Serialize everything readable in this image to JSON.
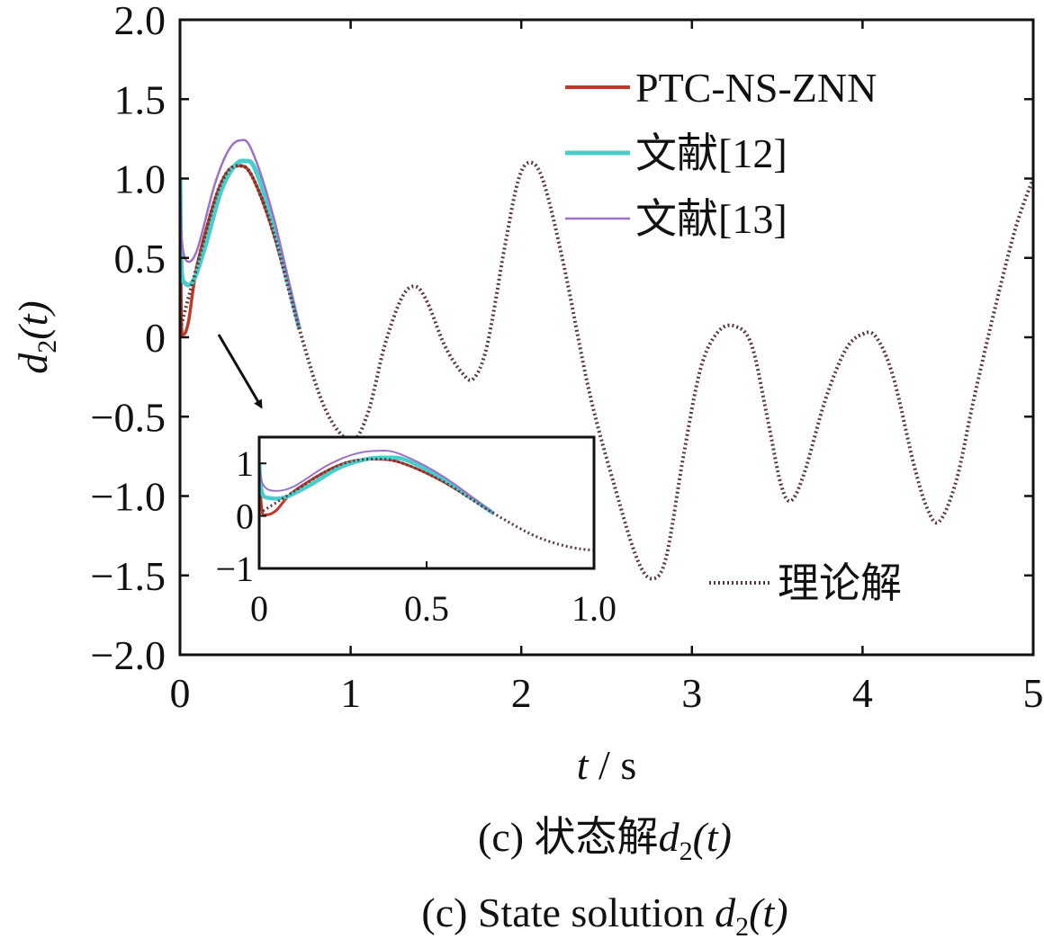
{
  "chart_data": {
    "type": "line",
    "ylabel": "d2(t)",
    "ylabel_main": "d",
    "ylabel_sub": "2",
    "ylabel_paren": "(t)",
    "xlabel": "t / s",
    "xlabel_var": "t",
    "xlabel_unit": " / s",
    "xlim": [
      0,
      5
    ],
    "ylim": [
      -2.0,
      2.0
    ],
    "xticks": [
      0,
      1,
      2,
      3,
      4,
      5
    ],
    "xtick_labels": [
      "0",
      "1",
      "2",
      "3",
      "4",
      "5"
    ],
    "yticks": [
      2.0,
      1.5,
      1.0,
      0.5,
      0,
      -0.5,
      -1.0,
      -1.5,
      -2.0
    ],
    "ytick_labels": [
      "2.0",
      "1.5",
      "1.0",
      "0.5",
      "0",
      "−0.5",
      "−1.0",
      "−1.5",
      "−2.0"
    ],
    "theory_points": [
      [
        0.0,
        0.05
      ],
      [
        0.1,
        0.45
      ],
      [
        0.2,
        0.85
      ],
      [
        0.27,
        1.03
      ],
      [
        0.34,
        1.08
      ],
      [
        0.42,
        1.02
      ],
      [
        0.55,
        0.65
      ],
      [
        0.7,
        0.05
      ],
      [
        0.85,
        -0.45
      ],
      [
        1.0,
        -0.65
      ],
      [
        1.1,
        -0.48
      ],
      [
        1.2,
        -0.05
      ],
      [
        1.3,
        0.25
      ],
      [
        1.38,
        0.32
      ],
      [
        1.45,
        0.22
      ],
      [
        1.55,
        -0.05
      ],
      [
        1.65,
        -0.22
      ],
      [
        1.72,
        -0.26
      ],
      [
        1.8,
        -0.05
      ],
      [
        1.9,
        0.55
      ],
      [
        1.98,
        0.98
      ],
      [
        2.05,
        1.1
      ],
      [
        2.13,
        0.98
      ],
      [
        2.25,
        0.45
      ],
      [
        2.4,
        -0.35
      ],
      [
        2.55,
        -0.95
      ],
      [
        2.68,
        -1.4
      ],
      [
        2.77,
        -1.52
      ],
      [
        2.85,
        -1.38
      ],
      [
        2.95,
        -0.75
      ],
      [
        3.05,
        -0.2
      ],
      [
        3.15,
        0.03
      ],
      [
        3.25,
        0.07
      ],
      [
        3.35,
        -0.05
      ],
      [
        3.45,
        -0.55
      ],
      [
        3.52,
        -0.92
      ],
      [
        3.58,
        -1.03
      ],
      [
        3.66,
        -0.85
      ],
      [
        3.78,
        -0.4
      ],
      [
        3.9,
        -0.08
      ],
      [
        4.0,
        0.02
      ],
      [
        4.08,
        0.0
      ],
      [
        4.18,
        -0.25
      ],
      [
        4.3,
        -0.8
      ],
      [
        4.38,
        -1.08
      ],
      [
        4.45,
        -1.16
      ],
      [
        4.55,
        -0.9
      ],
      [
        4.65,
        -0.4
      ],
      [
        4.78,
        0.2
      ],
      [
        4.9,
        0.7
      ],
      [
        5.0,
        1.0
      ]
    ],
    "series": [
      {
        "name": "PTC-NS-ZNN",
        "color": "#c0392b",
        "points": [
          [
            0.0,
            0.9
          ],
          [
            0.008,
            0.12
          ],
          [
            0.02,
            0.02
          ],
          [
            0.05,
            0.1
          ],
          [
            0.1,
            0.45
          ],
          [
            0.2,
            0.85
          ],
          [
            0.27,
            1.03
          ],
          [
            0.34,
            1.08
          ],
          [
            0.42,
            1.02
          ],
          [
            0.55,
            0.65
          ],
          [
            0.7,
            0.05
          ]
        ]
      },
      {
        "name": "文献[12]",
        "color": "#48cccc",
        "points": [
          [
            0.0,
            1.0
          ],
          [
            0.008,
            0.45
          ],
          [
            0.03,
            0.34
          ],
          [
            0.08,
            0.36
          ],
          [
            0.15,
            0.58
          ],
          [
            0.24,
            0.92
          ],
          [
            0.32,
            1.08
          ],
          [
            0.38,
            1.11
          ],
          [
            0.44,
            1.06
          ],
          [
            0.55,
            0.7
          ],
          [
            0.7,
            0.05
          ]
        ]
      },
      {
        "name": "文献[13]",
        "color": "#9b72c7",
        "points": [
          [
            0.0,
            1.0
          ],
          [
            0.01,
            0.62
          ],
          [
            0.04,
            0.48
          ],
          [
            0.1,
            0.55
          ],
          [
            0.2,
            0.95
          ],
          [
            0.28,
            1.17
          ],
          [
            0.35,
            1.24
          ],
          [
            0.42,
            1.18
          ],
          [
            0.55,
            0.75
          ],
          [
            0.7,
            0.05
          ]
        ]
      }
    ],
    "theory_name": "理论解",
    "theory_color": "#5a3a3a",
    "inset": {
      "xlim": [
        0,
        1.0
      ],
      "ylim": [
        -1,
        1.5
      ],
      "xticks": [
        0,
        0.5,
        1.0
      ],
      "xtick_labels": [
        "0",
        "0.5",
        "1.0"
      ],
      "yticks": [
        1,
        0,
        -1
      ],
      "ytick_labels": [
        "1",
        "0",
        "−1"
      ]
    },
    "legend_position": "top-right",
    "caption_cn_prefix": "(c)  状态解",
    "caption_en_prefix": "(c)  State solution ",
    "caption_var": "d",
    "caption_sub": "2",
    "caption_paren": "(t)"
  }
}
